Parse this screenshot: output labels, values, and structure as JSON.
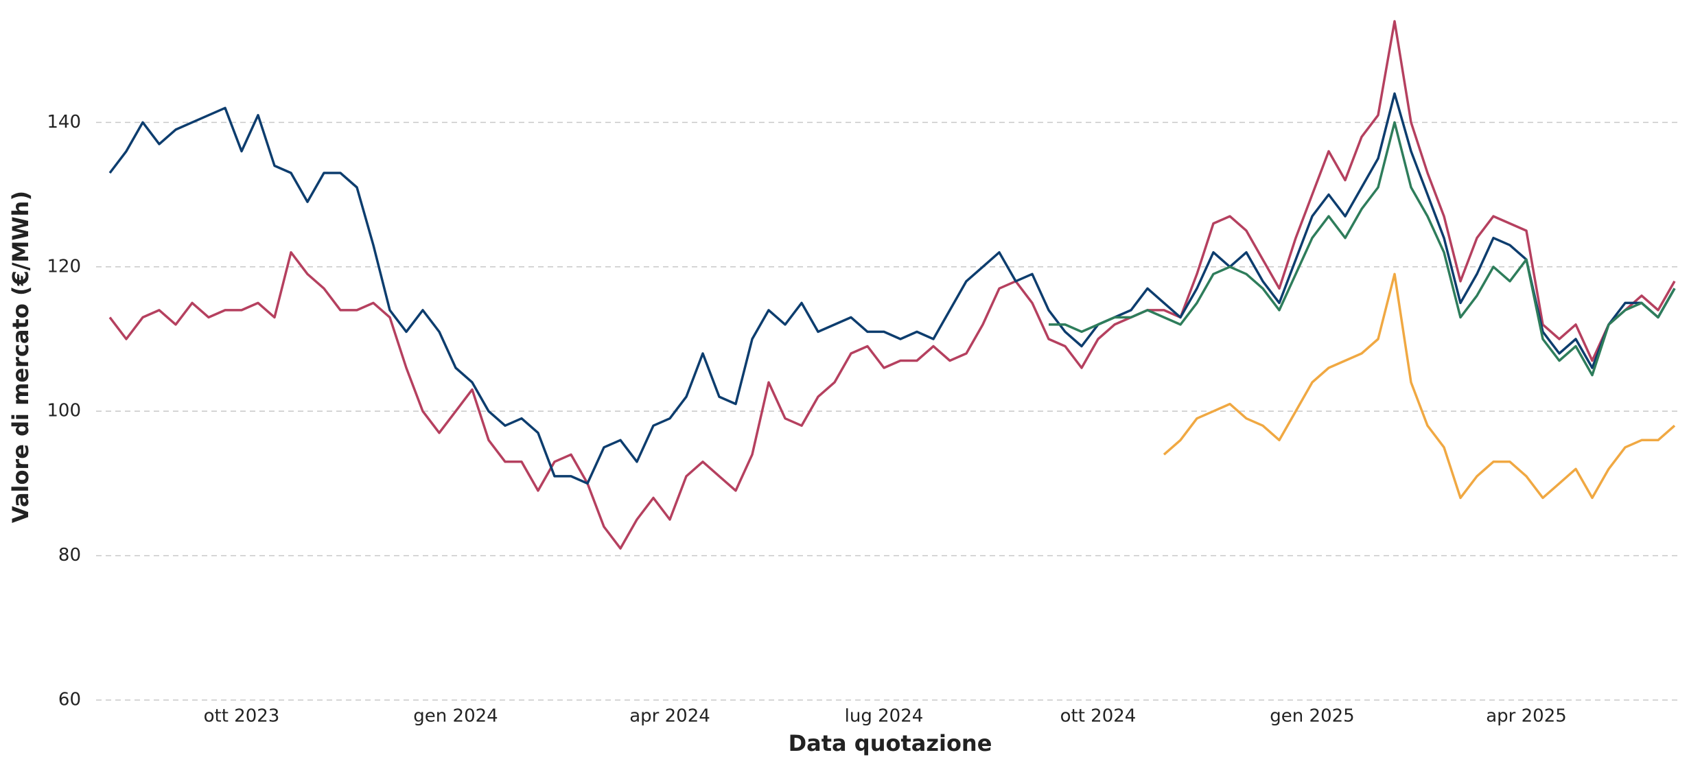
{
  "chart_data": {
    "type": "line",
    "ylabel": "Valore di mercato (€/MWh)",
    "xlabel": "Data quotazione",
    "categories": [
      null,
      null,
      null,
      null,
      null,
      null,
      null,
      null,
      "ott 2023",
      null,
      null,
      null,
      null,
      null,
      null,
      null,
      null,
      null,
      null,
      null,
      null,
      "gen 2024",
      null,
      null,
      null,
      null,
      null,
      null,
      null,
      null,
      null,
      null,
      null,
      null,
      "apr 2024",
      null,
      null,
      null,
      null,
      null,
      null,
      null,
      null,
      null,
      null,
      null,
      null,
      "lug 2024",
      null,
      null,
      null,
      null,
      null,
      null,
      null,
      null,
      null,
      null,
      null,
      null,
      "ott 2024",
      null,
      null,
      null,
      null,
      null,
      null,
      null,
      null,
      null,
      null,
      null,
      null,
      "gen 2025",
      null,
      null,
      null,
      null,
      null,
      null,
      null,
      null,
      null,
      null,
      null,
      null,
      "apr 2025",
      null,
      null,
      null,
      null,
      null,
      null,
      null,
      null,
      null
    ],
    "series": [
      {
        "color": "#b5405f",
        "values": [
          113,
          110,
          113,
          114,
          112,
          115,
          113,
          114,
          114,
          115,
          113,
          122,
          119,
          117,
          114,
          114,
          115,
          113,
          106,
          100,
          97,
          100,
          103,
          96,
          93,
          93,
          89,
          93,
          94,
          90,
          84,
          81,
          85,
          88,
          85,
          91,
          93,
          91,
          89,
          94,
          104,
          99,
          98,
          102,
          104,
          108,
          109,
          106,
          107,
          107,
          109,
          107,
          108,
          112,
          117,
          118,
          115,
          110,
          109,
          106,
          110,
          112,
          113,
          114,
          114,
          113,
          119,
          126,
          127,
          125,
          121,
          117,
          124,
          130,
          136,
          132,
          138,
          141,
          154,
          140,
          133,
          127,
          118,
          124,
          127,
          126,
          125,
          112,
          110,
          112,
          107,
          112,
          114,
          116,
          114,
          118
        ]
      },
      {
        "color": "#0d3d6e",
        "values": [
          133,
          136,
          140,
          137,
          139,
          140,
          141,
          142,
          136,
          141,
          134,
          133,
          129,
          133,
          133,
          131,
          123,
          114,
          111,
          114,
          111,
          106,
          104,
          100,
          98,
          99,
          97,
          91,
          91,
          90,
          95,
          96,
          93,
          98,
          99,
          102,
          108,
          102,
          101,
          110,
          114,
          112,
          115,
          111,
          112,
          113,
          111,
          111,
          110,
          111,
          110,
          114,
          118,
          120,
          122,
          118,
          119,
          114,
          111,
          109,
          112,
          113,
          114,
          117,
          115,
          113,
          117,
          122,
          120,
          122,
          118,
          115,
          121,
          127,
          130,
          127,
          131,
          135,
          144,
          136,
          130,
          124,
          115,
          119,
          124,
          123,
          121,
          111,
          108,
          110,
          106,
          112,
          115,
          115,
          113,
          117
        ]
      },
      {
        "color": "#2e7d5b",
        "values": [
          null,
          null,
          null,
          null,
          null,
          null,
          null,
          null,
          null,
          null,
          null,
          null,
          null,
          null,
          null,
          null,
          null,
          null,
          null,
          null,
          null,
          null,
          null,
          null,
          null,
          null,
          null,
          null,
          null,
          null,
          null,
          null,
          null,
          null,
          null,
          null,
          null,
          null,
          null,
          null,
          null,
          null,
          null,
          null,
          null,
          null,
          null,
          null,
          null,
          null,
          null,
          null,
          null,
          null,
          null,
          null,
          null,
          112,
          112,
          111,
          112,
          113,
          113,
          114,
          113,
          112,
          115,
          119,
          120,
          119,
          117,
          114,
          119,
          124,
          127,
          124,
          128,
          131,
          140,
          131,
          127,
          122,
          113,
          116,
          120,
          118,
          121,
          110,
          107,
          109,
          105,
          112,
          114,
          115,
          113,
          117
        ]
      },
      {
        "color": "#f0a842",
        "values": [
          null,
          null,
          null,
          null,
          null,
          null,
          null,
          null,
          null,
          null,
          null,
          null,
          null,
          null,
          null,
          null,
          null,
          null,
          null,
          null,
          null,
          null,
          null,
          null,
          null,
          null,
          null,
          null,
          null,
          null,
          null,
          null,
          null,
          null,
          null,
          null,
          null,
          null,
          null,
          null,
          null,
          null,
          null,
          null,
          null,
          null,
          null,
          null,
          null,
          null,
          null,
          null,
          null,
          null,
          null,
          null,
          null,
          null,
          null,
          null,
          null,
          null,
          null,
          null,
          94,
          96,
          99,
          100,
          101,
          99,
          98,
          96,
          100,
          104,
          106,
          107,
          108,
          110,
          119,
          104,
          98,
          95,
          88,
          91,
          93,
          93,
          91,
          88,
          90,
          92,
          88,
          92,
          95,
          96,
          96,
          98
        ]
      }
    ],
    "ylim": [
      60,
      156
    ],
    "yticks": [
      60,
      80,
      100,
      120,
      140
    ],
    "grid": true
  }
}
